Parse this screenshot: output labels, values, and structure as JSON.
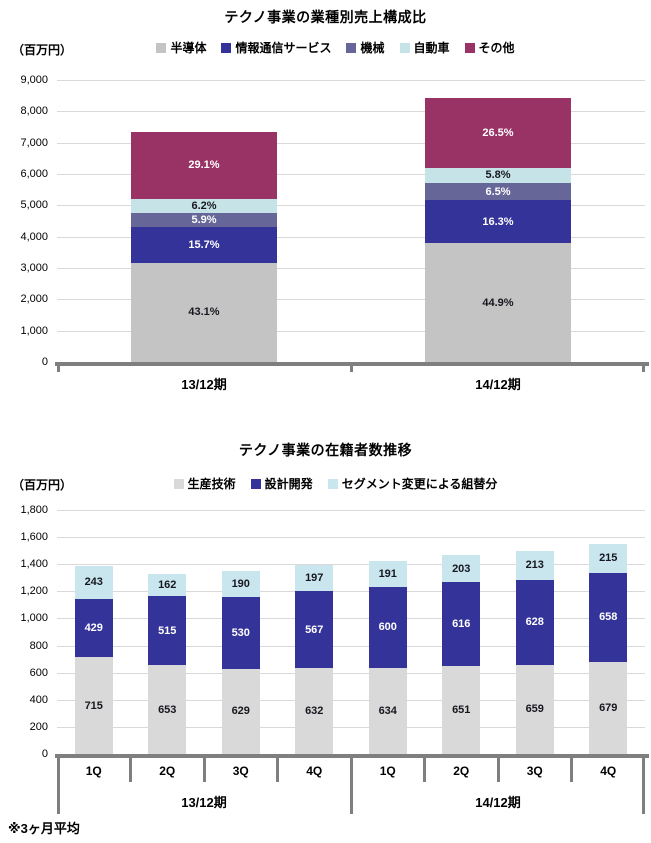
{
  "colors": {
    "axis": "#7f7f7f",
    "gridline": "#d9d9d9",
    "text": "#000000",
    "dark_label": "#17171f",
    "light_label": "#ffffff"
  },
  "chart_data": [
    {
      "type": "bar",
      "subtype": "stacked-percent",
      "title": "テクノ事業の業種別売上構成比",
      "unit_label": "（百万円）",
      "categories": [
        "13/12期",
        "14/12期"
      ],
      "series": [
        {
          "name": "半導体",
          "color": "#c4c4c4",
          "label_color": "#17171f",
          "pct": [
            43.1,
            44.9
          ]
        },
        {
          "name": "情報通信サービス",
          "color": "#333399",
          "label_color": "#ffffff",
          "pct": [
            15.7,
            16.3
          ]
        },
        {
          "name": "機械",
          "color": "#666699",
          "label_color": "#ffffff",
          "pct": [
            5.9,
            6.5
          ]
        },
        {
          "name": "自動車",
          "color": "#c6e3e7",
          "label_color": "#17171f",
          "pct": [
            6.2,
            5.8
          ]
        },
        {
          "name": "その他",
          "color": "#993366",
          "label_color": "#ffffff",
          "pct": [
            29.1,
            26.5
          ]
        }
      ],
      "totals_millions_est": [
        7350,
        8440
      ],
      "ylim": [
        0,
        9000
      ],
      "ytick_step": 1000,
      "grid": true,
      "legend_position": "top"
    },
    {
      "type": "bar",
      "subtype": "stacked",
      "title": "テクノ事業の在籍者数推移",
      "unit_label": "（百万円）",
      "groups": [
        {
          "label": "13/12期",
          "quarters": [
            "1Q",
            "2Q",
            "3Q",
            "4Q"
          ]
        },
        {
          "label": "14/12期",
          "quarters": [
            "1Q",
            "2Q",
            "3Q",
            "4Q"
          ]
        }
      ],
      "series": [
        {
          "name": "生産技術",
          "color": "#d9d9d9",
          "label_color": "#17171f",
          "values": [
            715,
            653,
            629,
            632,
            634,
            651,
            659,
            679
          ]
        },
        {
          "name": "設計開発",
          "color": "#333399",
          "label_color": "#ffffff",
          "values": [
            429,
            515,
            530,
            567,
            600,
            616,
            628,
            658
          ]
        },
        {
          "name": "セグメント変更による組替分",
          "color": "#c9e6ef",
          "label_color": "#17171f",
          "values": [
            243,
            162,
            190,
            197,
            191,
            203,
            213,
            215
          ]
        }
      ],
      "ylim": [
        0,
        1800
      ],
      "ytick_step": 200,
      "grid": true,
      "legend_position": "top",
      "footnote": "※3ヶ月平均"
    }
  ]
}
